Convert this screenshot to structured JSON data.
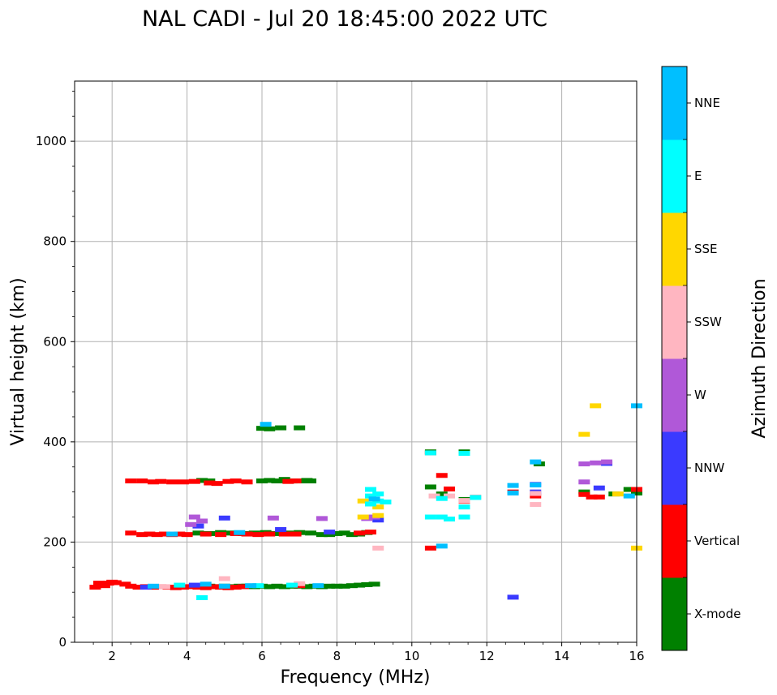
{
  "chart_data": {
    "type": "scatter",
    "title": "NAL CADI - Jul 20 18:45:00 2022 UTC",
    "xlabel": "Frequency (MHz)",
    "ylabel": "Virtual height (km)",
    "xlim": [
      1,
      16
    ],
    "ylim": [
      0,
      1120
    ],
    "xticks": [
      2,
      4,
      6,
      8,
      10,
      12,
      14,
      16
    ],
    "yticks": [
      0,
      200,
      400,
      600,
      800,
      1000
    ],
    "grid": true,
    "colorbar": {
      "title": "Azimuth Direction",
      "categories": [
        {
          "name": "X-mode",
          "color": "#008000"
        },
        {
          "name": "Vertical",
          "color": "#ff0000"
        },
        {
          "name": "NNW",
          "color": "#3a3aff"
        },
        {
          "name": "W",
          "color": "#b058d8"
        },
        {
          "name": "SSW",
          "color": "#ffb6c1"
        },
        {
          "name": "SSE",
          "color": "#ffd700"
        },
        {
          "name": "E",
          "color": "#00ffff"
        },
        {
          "name": "NNE",
          "color": "#00bfff"
        }
      ]
    },
    "series": [
      {
        "name": "X-mode",
        "color": "#008000",
        "points": [
          [
            4.2,
            112
          ],
          [
            4.4,
            112
          ],
          [
            4.6,
            112
          ],
          [
            4.8,
            111
          ],
          [
            5.0,
            112
          ],
          [
            5.2,
            111
          ],
          [
            5.4,
            112
          ],
          [
            5.6,
            112
          ],
          [
            5.8,
            111
          ],
          [
            6.0,
            112
          ],
          [
            6.2,
            111
          ],
          [
            6.4,
            112
          ],
          [
            6.6,
            111
          ],
          [
            6.8,
            112
          ],
          [
            7.0,
            112
          ],
          [
            7.2,
            111
          ],
          [
            7.4,
            112
          ],
          [
            7.6,
            111
          ],
          [
            7.8,
            112
          ],
          [
            8.0,
            112
          ],
          [
            8.2,
            112
          ],
          [
            8.4,
            113
          ],
          [
            8.6,
            114
          ],
          [
            8.8,
            115
          ],
          [
            9.0,
            116
          ],
          [
            4.3,
            218
          ],
          [
            4.6,
            217
          ],
          [
            4.9,
            219
          ],
          [
            5.2,
            218
          ],
          [
            5.5,
            217
          ],
          [
            5.8,
            218
          ],
          [
            6.1,
            219
          ],
          [
            6.4,
            217
          ],
          [
            6.7,
            218
          ],
          [
            7.0,
            219
          ],
          [
            7.3,
            218
          ],
          [
            7.6,
            215
          ],
          [
            7.8,
            215
          ],
          [
            8.0,
            217
          ],
          [
            8.2,
            218
          ],
          [
            8.4,
            215
          ],
          [
            8.6,
            216
          ],
          [
            8.8,
            219
          ],
          [
            4.4,
            323
          ],
          [
            4.6,
            322
          ],
          [
            6.0,
            322
          ],
          [
            6.2,
            323
          ],
          [
            6.4,
            322
          ],
          [
            6.6,
            325
          ],
          [
            6.8,
            322
          ],
          [
            7.0,
            322
          ],
          [
            7.2,
            323
          ],
          [
            7.3,
            322
          ],
          [
            6.0,
            427
          ],
          [
            6.2,
            426
          ],
          [
            6.5,
            428
          ],
          [
            7.0,
            428
          ],
          [
            10.5,
            380
          ],
          [
            10.5,
            310
          ],
          [
            10.8,
            296
          ],
          [
            11.4,
            380
          ],
          [
            11.4,
            285
          ],
          [
            13.4,
            356
          ],
          [
            14.6,
            300
          ],
          [
            15.4,
            296
          ],
          [
            15.8,
            305
          ],
          [
            16.0,
            298
          ]
        ]
      },
      {
        "name": "Vertical",
        "color": "#ff0000",
        "points": [
          [
            1.55,
            110
          ],
          [
            1.65,
            118
          ],
          [
            1.8,
            113
          ],
          [
            1.9,
            118
          ],
          [
            2.0,
            120
          ],
          [
            2.1,
            119
          ],
          [
            2.35,
            116
          ],
          [
            2.5,
            112
          ],
          [
            2.7,
            110
          ],
          [
            2.9,
            111
          ],
          [
            3.1,
            110
          ],
          [
            3.3,
            111
          ],
          [
            3.5,
            110
          ],
          [
            3.7,
            109
          ],
          [
            3.9,
            110
          ],
          [
            4.1,
            111
          ],
          [
            4.3,
            110
          ],
          [
            4.5,
            109
          ],
          [
            4.7,
            111
          ],
          [
            4.9,
            110
          ],
          [
            5.1,
            109
          ],
          [
            5.3,
            110
          ],
          [
            5.5,
            111
          ],
          [
            7.0,
            113
          ],
          [
            2.5,
            218
          ],
          [
            2.8,
            215
          ],
          [
            3.0,
            216
          ],
          [
            3.2,
            215
          ],
          [
            3.4,
            216
          ],
          [
            3.6,
            215
          ],
          [
            3.8,
            216
          ],
          [
            4.0,
            215
          ],
          [
            4.5,
            216
          ],
          [
            4.9,
            215
          ],
          [
            5.3,
            217
          ],
          [
            5.6,
            216
          ],
          [
            5.9,
            215
          ],
          [
            6.2,
            216
          ],
          [
            6.6,
            216
          ],
          [
            6.9,
            216
          ],
          [
            8.6,
            218
          ],
          [
            8.9,
            220
          ],
          [
            2.5,
            322
          ],
          [
            2.8,
            322
          ],
          [
            3.1,
            320
          ],
          [
            3.3,
            321
          ],
          [
            3.6,
            320
          ],
          [
            3.9,
            320
          ],
          [
            4.2,
            321
          ],
          [
            4.6,
            318
          ],
          [
            4.8,
            317
          ],
          [
            5.1,
            321
          ],
          [
            5.3,
            322
          ],
          [
            5.6,
            320
          ],
          [
            6.7,
            321
          ],
          [
            6.9,
            322
          ],
          [
            10.5,
            188
          ],
          [
            10.5,
            378
          ],
          [
            10.8,
            333
          ],
          [
            11.0,
            306
          ],
          [
            11.4,
            282
          ],
          [
            12.7,
            300
          ],
          [
            13.3,
            292
          ],
          [
            14.6,
            295
          ],
          [
            14.8,
            290
          ],
          [
            15.0,
            290
          ],
          [
            16.0,
            305
          ]
        ]
      },
      {
        "name": "NNW",
        "color": "#3a3aff",
        "points": [
          [
            2.9,
            110
          ],
          [
            4.2,
            114
          ],
          [
            5.0,
            248
          ],
          [
            4.3,
            232
          ],
          [
            6.5,
            225
          ],
          [
            7.8,
            220
          ],
          [
            9.1,
            244
          ],
          [
            12.7,
            90
          ],
          [
            13.3,
            300
          ],
          [
            13.3,
            315
          ],
          [
            15.0,
            308
          ],
          [
            15.2,
            357
          ]
        ]
      },
      {
        "name": "W",
        "color": "#b058d8",
        "points": [
          [
            4.2,
            250
          ],
          [
            4.4,
            242
          ],
          [
            4.1,
            235
          ],
          [
            6.3,
            248
          ],
          [
            7.6,
            247
          ],
          [
            8.8,
            247
          ],
          [
            9.0,
            250
          ],
          [
            14.6,
            320
          ],
          [
            14.6,
            356
          ],
          [
            14.9,
            358
          ],
          [
            15.2,
            360
          ]
        ]
      },
      {
        "name": "SSW",
        "color": "#ffb6c1",
        "points": [
          [
            3.4,
            111
          ],
          [
            5.0,
            127
          ],
          [
            7.0,
            117
          ],
          [
            9.1,
            188
          ],
          [
            10.6,
            292
          ],
          [
            11.0,
            292
          ],
          [
            11.4,
            283
          ],
          [
            11.7,
            290
          ],
          [
            13.3,
            275
          ],
          [
            13.3,
            297
          ]
        ]
      },
      {
        "name": "SSE",
        "color": "#ffd700",
        "points": [
          [
            8.7,
            250
          ],
          [
            8.7,
            282
          ],
          [
            9.1,
            270
          ],
          [
            9.1,
            253
          ],
          [
            14.6,
            415
          ],
          [
            14.9,
            472
          ],
          [
            16.0,
            188
          ],
          [
            15.5,
            296
          ]
        ]
      },
      {
        "name": "E",
        "color": "#00ffff",
        "points": [
          [
            3.8,
            114
          ],
          [
            4.4,
            89
          ],
          [
            5.9,
            113
          ],
          [
            6.8,
            114
          ],
          [
            8.9,
            305
          ],
          [
            8.9,
            292
          ],
          [
            9.1,
            282
          ],
          [
            9.1,
            296
          ],
          [
            9.3,
            280
          ],
          [
            8.9,
            276
          ],
          [
            10.5,
            250
          ],
          [
            10.8,
            250
          ],
          [
            11.0,
            246
          ],
          [
            11.4,
            250
          ],
          [
            11.4,
            270
          ],
          [
            10.8,
            287
          ],
          [
            10.5,
            378
          ],
          [
            11.4,
            377
          ],
          [
            11.7,
            289
          ]
        ]
      },
      {
        "name": "NNE",
        "color": "#00bfff",
        "points": [
          [
            3.1,
            112
          ],
          [
            4.5,
            116
          ],
          [
            5.0,
            112
          ],
          [
            5.7,
            113
          ],
          [
            6.1,
            435
          ],
          [
            7.5,
            113
          ],
          [
            3.6,
            216
          ],
          [
            5.4,
            219
          ],
          [
            9.0,
            286
          ],
          [
            10.8,
            192
          ],
          [
            12.7,
            313
          ],
          [
            12.7,
            298
          ],
          [
            13.3,
            314
          ],
          [
            13.3,
            360
          ],
          [
            15.8,
            292
          ],
          [
            16.0,
            472
          ]
        ]
      }
    ]
  }
}
